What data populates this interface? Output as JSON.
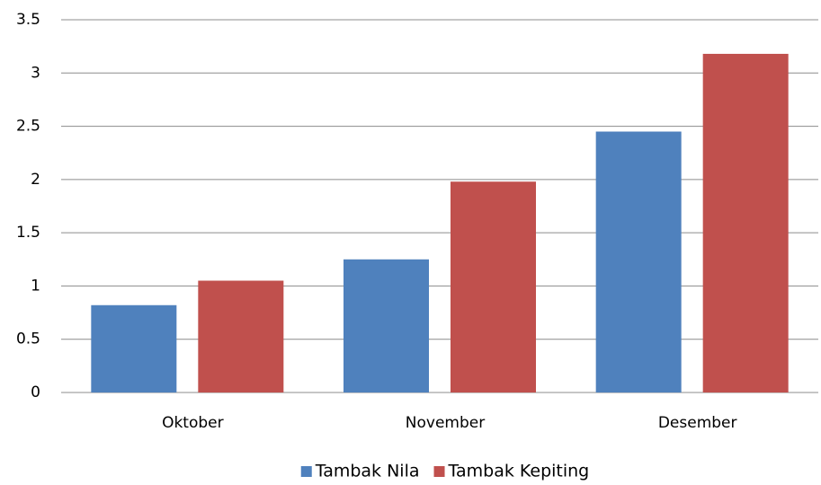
{
  "chart_data": {
    "type": "bar",
    "categories": [
      "Oktober",
      "November",
      "Desember"
    ],
    "series": [
      {
        "name": "Tambak Nila",
        "color": "#4f81bd",
        "values": [
          0.82,
          1.25,
          2.45
        ]
      },
      {
        "name": "Tambak Kepiting",
        "color": "#c0504d",
        "values": [
          1.05,
          1.98,
          3.18
        ]
      }
    ],
    "ylim": [
      0,
      3.5
    ],
    "yticks": [
      0,
      0.5,
      1,
      1.5,
      2,
      2.5,
      3,
      3.5
    ],
    "grid": true,
    "legend": "bottom"
  }
}
